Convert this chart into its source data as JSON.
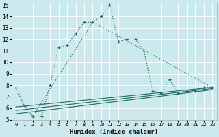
{
  "bg_color": "#cceaed",
  "grid_color": "#b8d8db",
  "line_color": "#1e6b5e",
  "xlabel": "Humidex (Indice chaleur)",
  "xlim": [
    -0.5,
    23.5
  ],
  "ylim": [
    5,
    15.2
  ],
  "xticks": [
    0,
    1,
    2,
    3,
    4,
    5,
    6,
    7,
    8,
    9,
    10,
    11,
    12,
    13,
    14,
    15,
    16,
    17,
    18,
    19,
    20,
    21,
    22,
    23
  ],
  "yticks": [
    5,
    6,
    7,
    8,
    9,
    10,
    11,
    12,
    13,
    14,
    15
  ],
  "main_x": [
    0,
    1,
    2,
    3,
    4,
    5,
    6,
    7,
    8,
    9,
    10,
    11,
    12,
    13,
    14,
    15,
    16,
    17,
    18,
    19,
    20,
    21,
    22,
    23
  ],
  "main_y": [
    7.8,
    6.2,
    5.3,
    5.3,
    8.0,
    11.3,
    11.5,
    12.5,
    13.5,
    13.5,
    14.0,
    15.0,
    11.8,
    12.0,
    12.0,
    11.0,
    7.5,
    7.3,
    8.5,
    7.3,
    7.5,
    7.5,
    7.8,
    7.8
  ],
  "line2_x": [
    2,
    9,
    23
  ],
  "line2_y": [
    5.3,
    13.5,
    7.8
  ],
  "line3_x": [
    0,
    23
  ],
  "line3_y": [
    5.5,
    7.6
  ],
  "line4_x": [
    0,
    23
  ],
  "line4_y": [
    5.8,
    7.7
  ],
  "line5_x": [
    0,
    23
  ],
  "line5_y": [
    6.1,
    7.8
  ],
  "xlabel_fontsize": 6.5,
  "tick_fontsize": 5.5
}
